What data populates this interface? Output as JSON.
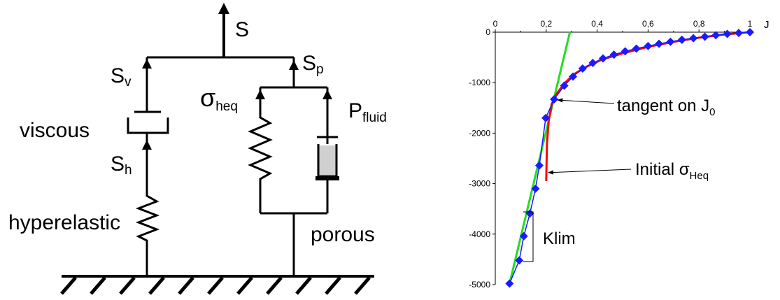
{
  "diagram": {
    "top_force": "S",
    "viscous_branch": {
      "force_base": "S",
      "force_sub": "v",
      "label": "viscous"
    },
    "hyper_branch": {
      "force_base": "S",
      "force_sub": "h",
      "label": "hyperelastic"
    },
    "porous_branch": {
      "force_base": "S",
      "force_sub": "p",
      "spring_force_base": "σ",
      "spring_force_sub": "heq",
      "fluid_force_base": "P",
      "fluid_force_sub": "fluid",
      "label": "porous"
    }
  },
  "chart_data": {
    "type": "line",
    "x_axis_label": "J",
    "x_ticks": [
      "0",
      "0,2",
      "0,4",
      "0,6",
      "0,8",
      "1"
    ],
    "y_ticks": [
      "0",
      "-1000",
      "-2000",
      "-3000",
      "-4000",
      "-5000"
    ],
    "xlim": [
      0,
      1
    ],
    "ylim": [
      -5000,
      0
    ],
    "x_axis_position": "top",
    "grid": false,
    "series": [
      {
        "color": "#1a1aff",
        "marker": "diamond",
        "x": [
          0.056,
          0.094,
          0.112,
          0.136,
          0.158,
          0.173,
          0.198,
          0.231,
          0.271,
          0.305,
          0.343,
          0.383,
          0.423,
          0.466,
          0.51,
          0.554,
          0.6,
          0.643,
          0.688,
          0.733,
          0.778,
          0.823,
          0.866,
          0.911,
          0.956,
          1.0
        ],
        "y": [
          -4980,
          -4520,
          -4040,
          -3590,
          -3100,
          -2640,
          -1700,
          -1330,
          -1060,
          -880,
          -720,
          -610,
          -520,
          -445,
          -380,
          -325,
          -275,
          -230,
          -190,
          -150,
          -120,
          -90,
          -60,
          -35,
          -15,
          0
        ]
      },
      {
        "color": "#ff0000",
        "x": [
          0.2,
          0.203,
          0.21,
          0.222,
          0.24,
          0.27,
          0.31,
          0.36,
          0.42,
          0.5,
          0.6,
          0.7,
          0.8,
          0.9,
          1.0
        ],
        "y": [
          -2950,
          -2200,
          -1750,
          -1420,
          -1230,
          -1020,
          -830,
          -680,
          -540,
          -420,
          -290,
          -190,
          -110,
          -45,
          0
        ]
      },
      {
        "color": "#22dd22",
        "x": [
          0.056,
          0.293
        ],
        "y": [
          -4980,
          0
        ]
      }
    ],
    "annotations": [
      {
        "text_base": "tangent on J",
        "text_sub": "0",
        "target_x": 0.231,
        "target_y": -1330
      },
      {
        "text_base": "Initial σ",
        "text_sub": "Heq",
        "target_x": 0.2,
        "target_y": -2740
      },
      {
        "text": "Klim"
      }
    ]
  }
}
